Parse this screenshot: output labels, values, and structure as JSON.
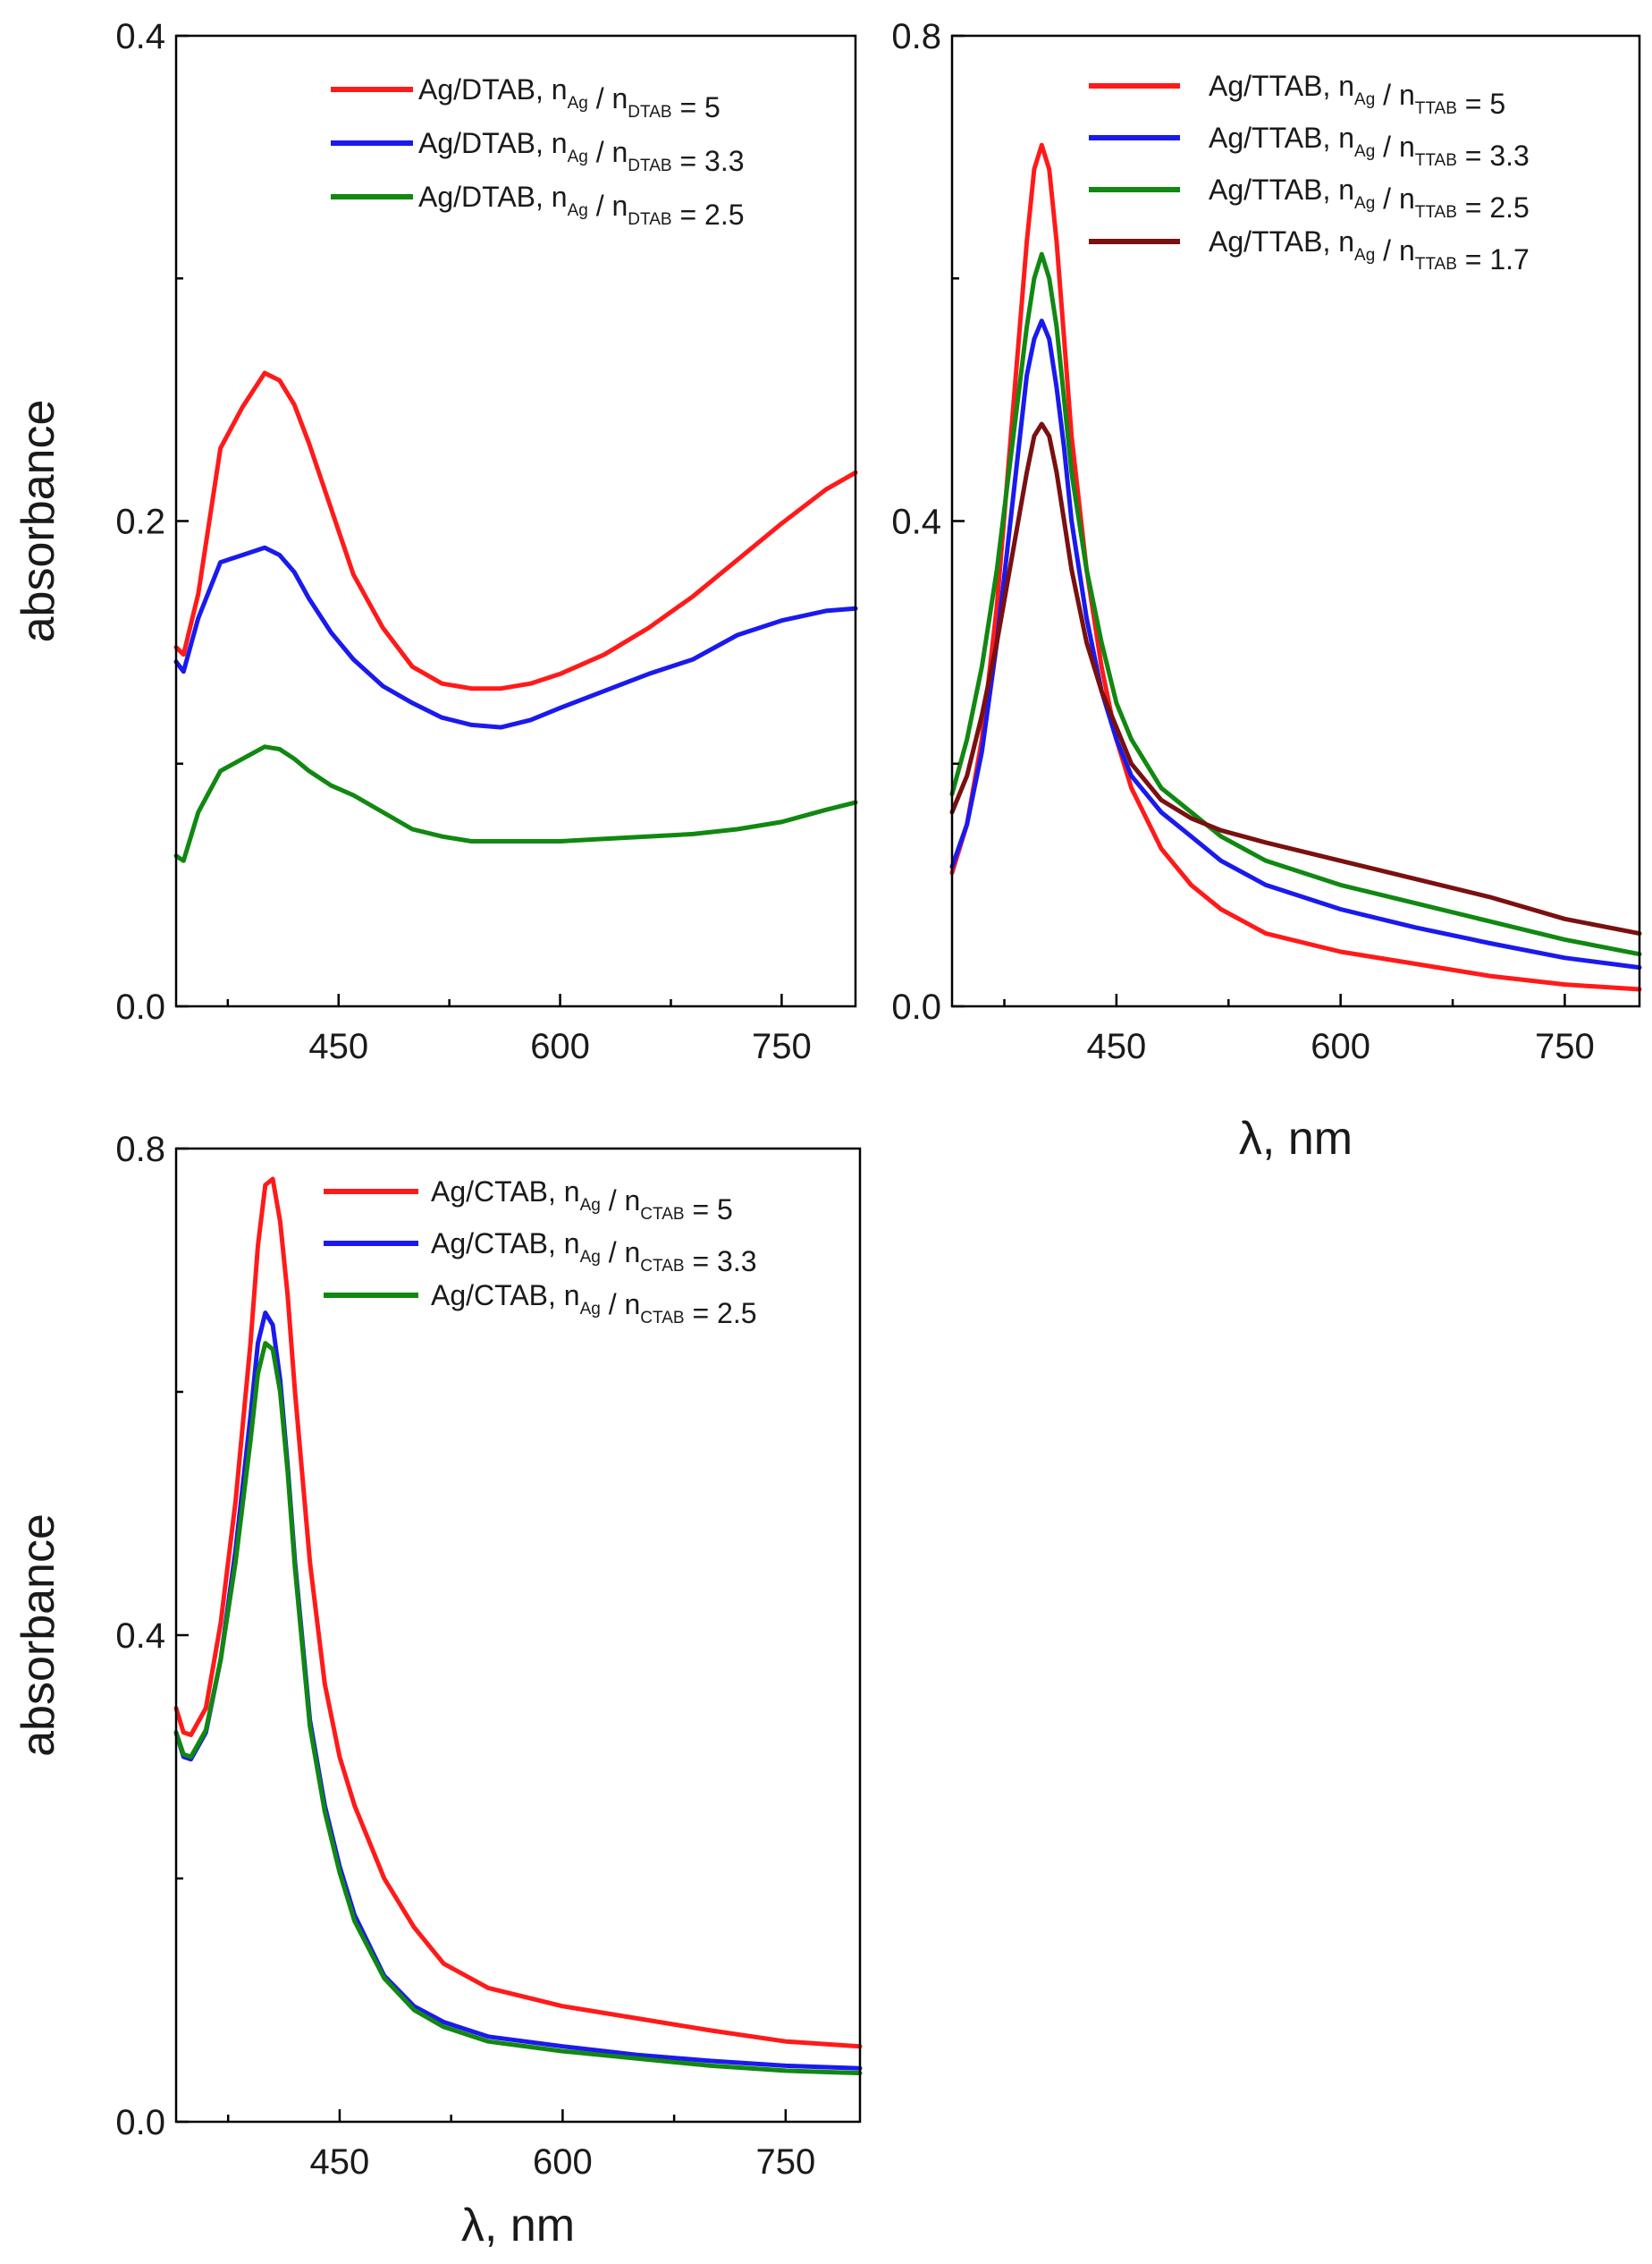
{
  "chart_data": [
    {
      "id": "dtab",
      "type": "line",
      "xlabel": "",
      "ylabel": "absorbance",
      "xlim": [
        340,
        800
      ],
      "ylim": [
        0.0,
        0.4
      ],
      "x_ticks": [
        450,
        600,
        750
      ],
      "x_tick_labels": [
        "450",
        "600",
        "750"
      ],
      "y_ticks": [
        0.0,
        0.2,
        0.4
      ],
      "y_tick_labels": [
        "0.0",
        "0.2",
        "0.4"
      ],
      "legend_position": "top-right",
      "series": [
        {
          "name": "Ag/DTAB, n_Ag / n_DTAB = 5",
          "legend_prefix": "Ag/DTAB, n",
          "sub1": "Ag",
          "mid": " / n",
          "sub2": "DTAB",
          "legend_value": " =  5",
          "color": "#ff1a1a",
          "x": [
            340,
            345,
            355,
            370,
            385,
            400,
            410,
            420,
            430,
            445,
            460,
            480,
            500,
            520,
            540,
            560,
            580,
            600,
            630,
            660,
            690,
            720,
            750,
            780,
            800
          ],
          "y": [
            0.148,
            0.145,
            0.17,
            0.23,
            0.247,
            0.261,
            0.258,
            0.248,
            0.232,
            0.205,
            0.178,
            0.156,
            0.14,
            0.133,
            0.131,
            0.131,
            0.133,
            0.137,
            0.145,
            0.156,
            0.169,
            0.184,
            0.199,
            0.213,
            0.22
          ]
        },
        {
          "name": "Ag/DTAB, n_Ag / n_DTAB = 3.3",
          "legend_prefix": "Ag/DTAB, n",
          "sub1": "Ag",
          "mid": " / n",
          "sub2": "DTAB",
          "legend_value": " =  3.3",
          "color": "#1a1aee",
          "x": [
            340,
            345,
            355,
            370,
            385,
            400,
            410,
            420,
            430,
            445,
            460,
            480,
            500,
            520,
            540,
            560,
            580,
            600,
            630,
            660,
            690,
            720,
            750,
            780,
            800
          ],
          "y": [
            0.142,
            0.138,
            0.16,
            0.183,
            0.186,
            0.189,
            0.186,
            0.179,
            0.168,
            0.154,
            0.143,
            0.132,
            0.125,
            0.119,
            0.116,
            0.115,
            0.118,
            0.123,
            0.13,
            0.137,
            0.143,
            0.153,
            0.159,
            0.163,
            0.164
          ]
        },
        {
          "name": "Ag/DTAB, n_Ag / n_DTAB = 2.5",
          "legend_prefix": "Ag/DTAB, n",
          "sub1": "Ag",
          "mid": " / n",
          "sub2": "DTAB",
          "legend_value": " =  2.5",
          "color": "#118811",
          "x": [
            340,
            345,
            355,
            370,
            385,
            400,
            410,
            420,
            430,
            445,
            460,
            480,
            500,
            520,
            540,
            560,
            580,
            600,
            630,
            660,
            690,
            720,
            750,
            780,
            800
          ],
          "y": [
            0.062,
            0.06,
            0.08,
            0.097,
            0.102,
            0.107,
            0.106,
            0.102,
            0.097,
            0.091,
            0.087,
            0.08,
            0.073,
            0.07,
            0.068,
            0.068,
            0.068,
            0.068,
            0.069,
            0.07,
            0.071,
            0.073,
            0.076,
            0.081,
            0.084
          ]
        }
      ]
    },
    {
      "id": "ttab",
      "type": "line",
      "xlabel": "λ, nm",
      "ylabel": "",
      "xlim": [
        340,
        800
      ],
      "ylim": [
        0.0,
        0.8
      ],
      "x_ticks": [
        450,
        600,
        750
      ],
      "x_tick_labels": [
        "450",
        "600",
        "750"
      ],
      "y_ticks": [
        0.0,
        0.4,
        0.8
      ],
      "y_tick_labels": [
        "0.0",
        "0.4",
        "0.8"
      ],
      "legend_position": "top-right",
      "series": [
        {
          "name": "Ag/TTAB, n_Ag / n_TTAB = 5",
          "legend_prefix": "Ag/TTAB, n",
          "sub1": "Ag",
          "mid": " / n",
          "sub2": "TTAB",
          "legend_value": " =  5",
          "color": "#ff1a1a",
          "x": [
            340,
            350,
            360,
            370,
            380,
            390,
            395,
            400,
            405,
            410,
            415,
            420,
            430,
            440,
            450,
            460,
            480,
            500,
            520,
            550,
            600,
            650,
            700,
            750,
            800
          ],
          "y": [
            0.11,
            0.15,
            0.22,
            0.33,
            0.48,
            0.63,
            0.69,
            0.71,
            0.69,
            0.63,
            0.55,
            0.47,
            0.36,
            0.28,
            0.22,
            0.18,
            0.13,
            0.1,
            0.08,
            0.06,
            0.045,
            0.035,
            0.025,
            0.018,
            0.014
          ]
        },
        {
          "name": "Ag/TTAB, n_Ag / n_TTAB = 3.3",
          "legend_prefix": "Ag/TTAB, n",
          "sub1": "Ag",
          "mid": " / n",
          "sub2": "TTAB",
          "legend_value": " =  3.3",
          "color": "#1a1aee",
          "x": [
            340,
            350,
            360,
            370,
            380,
            390,
            395,
            400,
            405,
            410,
            415,
            420,
            430,
            440,
            450,
            460,
            480,
            500,
            520,
            550,
            600,
            650,
            700,
            750,
            800
          ],
          "y": [
            0.115,
            0.15,
            0.21,
            0.3,
            0.41,
            0.52,
            0.55,
            0.565,
            0.55,
            0.51,
            0.46,
            0.4,
            0.32,
            0.26,
            0.22,
            0.19,
            0.16,
            0.14,
            0.12,
            0.1,
            0.08,
            0.065,
            0.052,
            0.04,
            0.032
          ]
        },
        {
          "name": "Ag/TTAB, n_Ag / n_TTAB = 2.5",
          "legend_prefix": "Ag/TTAB, n",
          "sub1": "Ag",
          "mid": " / n",
          "sub2": "TTAB",
          "legend_value": " =  2.5",
          "color": "#118811",
          "x": [
            340,
            350,
            360,
            370,
            380,
            390,
            395,
            400,
            405,
            410,
            415,
            420,
            430,
            440,
            450,
            460,
            480,
            500,
            520,
            550,
            600,
            650,
            700,
            750,
            800
          ],
          "y": [
            0.175,
            0.22,
            0.28,
            0.36,
            0.46,
            0.56,
            0.6,
            0.62,
            0.6,
            0.56,
            0.5,
            0.44,
            0.36,
            0.3,
            0.25,
            0.22,
            0.18,
            0.16,
            0.14,
            0.12,
            0.1,
            0.085,
            0.07,
            0.055,
            0.043
          ]
        },
        {
          "name": "Ag/TTAB, n_Ag / n_TTAB = 1.7",
          "legend_prefix": "Ag/TTAB, n",
          "sub1": "Ag",
          "mid": " / n",
          "sub2": "TTAB",
          "legend_value": " =  1.7",
          "color": "#7a1010",
          "x": [
            340,
            350,
            360,
            370,
            380,
            390,
            395,
            400,
            405,
            410,
            415,
            420,
            430,
            440,
            450,
            460,
            480,
            500,
            520,
            550,
            600,
            650,
            700,
            750,
            800
          ],
          "y": [
            0.16,
            0.19,
            0.24,
            0.3,
            0.37,
            0.44,
            0.47,
            0.48,
            0.47,
            0.44,
            0.4,
            0.36,
            0.3,
            0.26,
            0.23,
            0.2,
            0.17,
            0.155,
            0.145,
            0.135,
            0.12,
            0.105,
            0.09,
            0.072,
            0.06
          ]
        }
      ]
    },
    {
      "id": "ctab",
      "type": "line",
      "xlabel": "λ, nm",
      "ylabel": "absorbance",
      "xlim": [
        340,
        800
      ],
      "ylim": [
        0.0,
        0.8
      ],
      "x_ticks": [
        450,
        600,
        750
      ],
      "x_tick_labels": [
        "450",
        "600",
        "750"
      ],
      "y_ticks": [
        0.0,
        0.4,
        0.8
      ],
      "y_tick_labels": [
        "0.0",
        "0.4",
        "0.8"
      ],
      "legend_position": "top-right",
      "series": [
        {
          "name": "Ag/CTAB, n_Ag / n_CTAB = 5",
          "legend_prefix": "Ag/CTAB, n",
          "sub1": "Ag",
          "mid": " / n",
          "sub2": "CTAB",
          "legend_value": " =  5",
          "color": "#ff1a1a",
          "x": [
            340,
            345,
            350,
            360,
            370,
            380,
            390,
            395,
            400,
            405,
            410,
            415,
            420,
            430,
            440,
            450,
            460,
            480,
            500,
            520,
            550,
            600,
            650,
            700,
            750,
            800
          ],
          "y": [
            0.34,
            0.32,
            0.318,
            0.34,
            0.41,
            0.51,
            0.64,
            0.72,
            0.77,
            0.775,
            0.74,
            0.68,
            0.6,
            0.46,
            0.36,
            0.3,
            0.26,
            0.2,
            0.16,
            0.13,
            0.11,
            0.095,
            0.085,
            0.075,
            0.066,
            0.062
          ]
        },
        {
          "name": "Ag/CTAB, n_Ag / n_CTAB = 3.3",
          "legend_prefix": "Ag/CTAB, n",
          "sub1": "Ag",
          "mid": " / n",
          "sub2": "CTAB",
          "legend_value": " =  3.3",
          "color": "#1a1aee",
          "x": [
            340,
            345,
            350,
            360,
            370,
            380,
            390,
            395,
            400,
            405,
            410,
            415,
            420,
            430,
            440,
            450,
            460,
            480,
            500,
            520,
            550,
            600,
            650,
            700,
            750,
            800
          ],
          "y": [
            0.32,
            0.3,
            0.298,
            0.32,
            0.38,
            0.47,
            0.58,
            0.64,
            0.665,
            0.655,
            0.61,
            0.54,
            0.46,
            0.33,
            0.26,
            0.21,
            0.17,
            0.12,
            0.095,
            0.082,
            0.07,
            0.062,
            0.055,
            0.05,
            0.046,
            0.044
          ]
        },
        {
          "name": "Ag/CTAB, n_Ag / n_CTAB = 2.5",
          "legend_prefix": "Ag/CTAB, n",
          "sub1": "Ag",
          "mid": " / n",
          "sub2": "CTAB",
          "legend_value": " =  2.5",
          "color": "#118811",
          "x": [
            340,
            345,
            350,
            360,
            370,
            380,
            390,
            395,
            400,
            405,
            410,
            415,
            420,
            430,
            440,
            450,
            460,
            480,
            500,
            520,
            550,
            600,
            650,
            700,
            750,
            800
          ],
          "y": [
            0.32,
            0.302,
            0.3,
            0.322,
            0.38,
            0.46,
            0.56,
            0.615,
            0.64,
            0.635,
            0.6,
            0.535,
            0.455,
            0.325,
            0.255,
            0.205,
            0.165,
            0.118,
            0.092,
            0.078,
            0.066,
            0.058,
            0.052,
            0.046,
            0.042,
            0.04
          ]
        }
      ]
    }
  ]
}
